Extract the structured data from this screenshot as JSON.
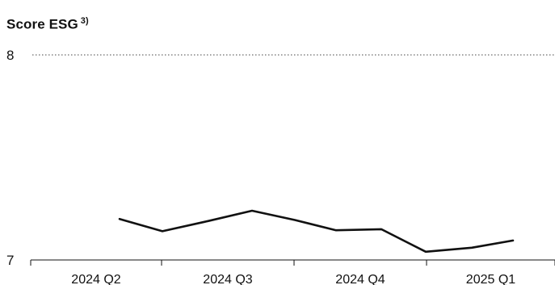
{
  "chart_data": {
    "type": "line",
    "title": "Score ESG",
    "title_superscript": "3)",
    "ylim": [
      7,
      8
    ],
    "y_ticks": [
      "7",
      "8"
    ],
    "x_ticks": [
      "2024 Q2",
      "2024 Q3",
      "2024 Q4",
      "2025 Q1"
    ],
    "grid": "dotted line at upper limit",
    "series": [
      {
        "values": [
          {
            "x": "2024 Q2",
            "y": 7.2
          },
          {
            "x": "2024 Q2/Q3",
            "y": 7.14
          },
          {
            "x": "2024 Q3",
            "y": 7.19
          },
          {
            "x": "2024 Q3",
            "y": 7.24
          },
          {
            "x": "2024 Q3/Q4",
            "y": 7.195
          },
          {
            "x": "2024 Q4",
            "y": 7.145
          },
          {
            "x": "2024 Q4",
            "y": 7.15
          },
          {
            "x": "2025 Q1",
            "y": 7.04
          },
          {
            "x": "2025 Q1",
            "y": 7.06
          },
          {
            "x": "2025 Q1",
            "y": 7.095
          }
        ]
      }
    ],
    "line_color": "#111111"
  }
}
